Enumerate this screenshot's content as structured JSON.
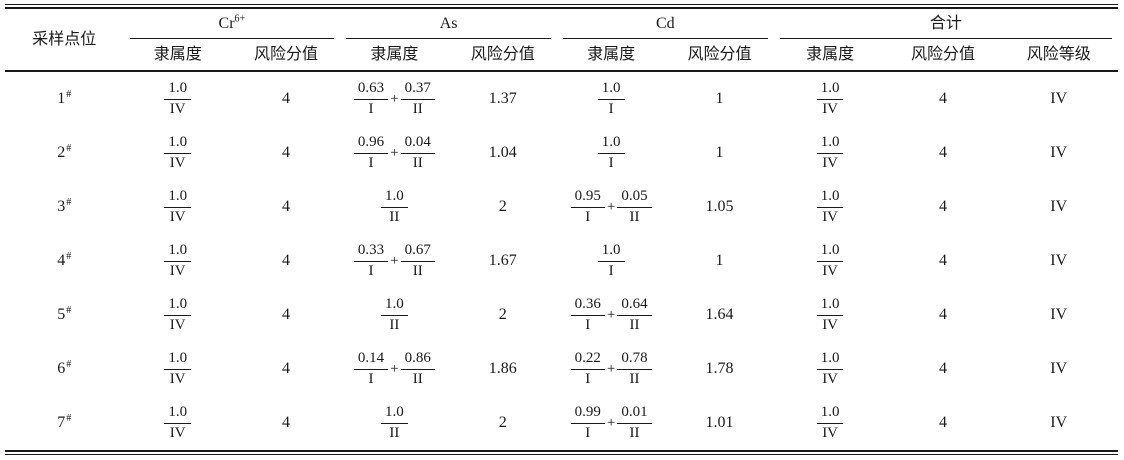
{
  "ui": {
    "plus_sign": "+"
  },
  "table": {
    "header": {
      "point_label": "采样点位",
      "groups": [
        {
          "text": "Cr",
          "sup": "6+",
          "sub": [
            "隶属度",
            "风险分值"
          ]
        },
        {
          "text": "As",
          "sup": "",
          "sub": [
            "隶属度",
            "风险分值"
          ]
        },
        {
          "text": "Cd",
          "sup": "",
          "sub": [
            "隶属度",
            "风险分值"
          ]
        },
        {
          "text": "合计",
          "sup": "",
          "sub": [
            "隶属度",
            "风险分值",
            "风险等级"
          ]
        }
      ]
    },
    "rows": [
      {
        "point": "1",
        "point_sup": "#",
        "cr": {
          "membership": [
            {
              "num": "1.0",
              "den": "IV"
            }
          ],
          "score": "4"
        },
        "as": {
          "membership": [
            {
              "num": "0.63",
              "den": "I"
            },
            {
              "num": "0.37",
              "den": "II"
            }
          ],
          "score": "1.37"
        },
        "cd": {
          "membership": [
            {
              "num": "1.0",
              "den": "I"
            }
          ],
          "score": "1"
        },
        "total": {
          "membership": [
            {
              "num": "1.0",
              "den": "IV"
            }
          ],
          "score": "4",
          "grade": "IV"
        }
      },
      {
        "point": "2",
        "point_sup": "#",
        "cr": {
          "membership": [
            {
              "num": "1.0",
              "den": "IV"
            }
          ],
          "score": "4"
        },
        "as": {
          "membership": [
            {
              "num": "0.96",
              "den": "I"
            },
            {
              "num": "0.04",
              "den": "II"
            }
          ],
          "score": "1.04"
        },
        "cd": {
          "membership": [
            {
              "num": "1.0",
              "den": "I"
            }
          ],
          "score": "1"
        },
        "total": {
          "membership": [
            {
              "num": "1.0",
              "den": "IV"
            }
          ],
          "score": "4",
          "grade": "IV"
        }
      },
      {
        "point": "3",
        "point_sup": "#",
        "cr": {
          "membership": [
            {
              "num": "1.0",
              "den": "IV"
            }
          ],
          "score": "4"
        },
        "as": {
          "membership": [
            {
              "num": "1.0",
              "den": "II"
            }
          ],
          "score": "2"
        },
        "cd": {
          "membership": [
            {
              "num": "0.95",
              "den": "I"
            },
            {
              "num": "0.05",
              "den": "II"
            }
          ],
          "score": "1.05"
        },
        "total": {
          "membership": [
            {
              "num": "1.0",
              "den": "IV"
            }
          ],
          "score": "4",
          "grade": "IV"
        }
      },
      {
        "point": "4",
        "point_sup": "#",
        "cr": {
          "membership": [
            {
              "num": "1.0",
              "den": "IV"
            }
          ],
          "score": "4"
        },
        "as": {
          "membership": [
            {
              "num": "0.33",
              "den": "I"
            },
            {
              "num": "0.67",
              "den": "II"
            }
          ],
          "score": "1.67"
        },
        "cd": {
          "membership": [
            {
              "num": "1.0",
              "den": "I"
            }
          ],
          "score": "1"
        },
        "total": {
          "membership": [
            {
              "num": "1.0",
              "den": "IV"
            }
          ],
          "score": "4",
          "grade": "IV"
        }
      },
      {
        "point": "5",
        "point_sup": "#",
        "cr": {
          "membership": [
            {
              "num": "1.0",
              "den": "IV"
            }
          ],
          "score": "4"
        },
        "as": {
          "membership": [
            {
              "num": "1.0",
              "den": "II"
            }
          ],
          "score": "2"
        },
        "cd": {
          "membership": [
            {
              "num": "0.36",
              "den": "I"
            },
            {
              "num": "0.64",
              "den": "II"
            }
          ],
          "score": "1.64"
        },
        "total": {
          "membership": [
            {
              "num": "1.0",
              "den": "IV"
            }
          ],
          "score": "4",
          "grade": "IV"
        }
      },
      {
        "point": "6",
        "point_sup": "#",
        "cr": {
          "membership": [
            {
              "num": "1.0",
              "den": "IV"
            }
          ],
          "score": "4"
        },
        "as": {
          "membership": [
            {
              "num": "0.14",
              "den": "I"
            },
            {
              "num": "0.86",
              "den": "II"
            }
          ],
          "score": "1.86"
        },
        "cd": {
          "membership": [
            {
              "num": "0.22",
              "den": "I"
            },
            {
              "num": "0.78",
              "den": "II"
            }
          ],
          "score": "1.78"
        },
        "total": {
          "membership": [
            {
              "num": "1.0",
              "den": "IV"
            }
          ],
          "score": "4",
          "grade": "IV"
        }
      },
      {
        "point": "7",
        "point_sup": "#",
        "cr": {
          "membership": [
            {
              "num": "1.0",
              "den": "IV"
            }
          ],
          "score": "4"
        },
        "as": {
          "membership": [
            {
              "num": "1.0",
              "den": "II"
            }
          ],
          "score": "2"
        },
        "cd": {
          "membership": [
            {
              "num": "0.99",
              "den": "I"
            },
            {
              "num": "0.01",
              "den": "II"
            }
          ],
          "score": "1.01"
        },
        "total": {
          "membership": [
            {
              "num": "1.0",
              "den": "IV"
            }
          ],
          "score": "4",
          "grade": "IV"
        }
      }
    ]
  }
}
